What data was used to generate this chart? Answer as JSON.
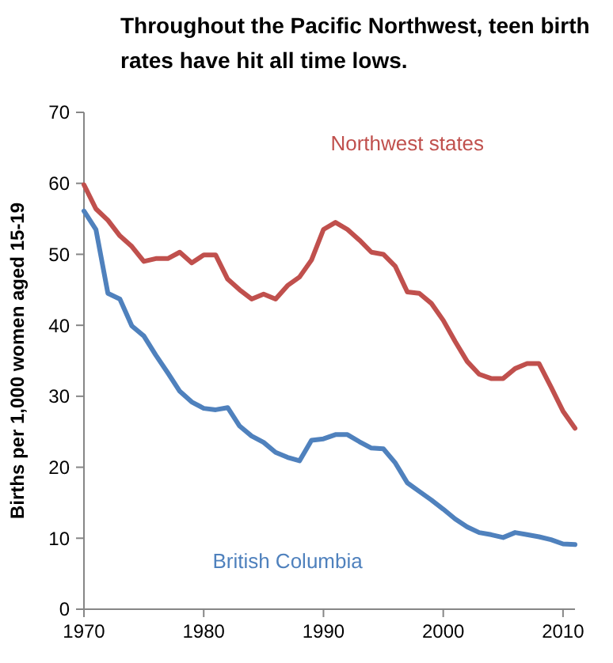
{
  "chart_data": {
    "type": "line",
    "title": "Throughout the Pacific Northwest, teen birth rates have hit all time lows.",
    "ylabel": "Births per 1,000 women aged 15-19",
    "x": [
      1970,
      1971,
      1972,
      1973,
      1974,
      1975,
      1976,
      1977,
      1978,
      1979,
      1980,
      1981,
      1982,
      1983,
      1984,
      1985,
      1986,
      1987,
      1988,
      1989,
      1990,
      1991,
      1992,
      1993,
      1994,
      1995,
      1996,
      1997,
      1998,
      1999,
      2000,
      2001,
      2002,
      2003,
      2004,
      2005,
      2006,
      2007,
      2008,
      2009,
      2010,
      2011
    ],
    "series": [
      {
        "name": "Northwest states",
        "color": "#c0504d",
        "values": [
          59.8,
          56.4,
          54.8,
          52.6,
          51.1,
          49.0,
          49.4,
          49.4,
          50.3,
          48.8,
          49.9,
          49.9,
          46.5,
          45.0,
          43.7,
          44.4,
          43.7,
          45.6,
          46.8,
          49.2,
          53.5,
          54.5,
          53.5,
          52.0,
          50.3,
          50.0,
          48.3,
          44.7,
          44.5,
          43.1,
          40.7,
          37.7,
          34.9,
          33.1,
          32.5,
          32.5,
          33.9,
          34.6,
          34.6,
          31.3,
          27.9,
          25.5
        ]
      },
      {
        "name": "British Columbia",
        "color": "#4f81bd",
        "values": [
          56.1,
          53.5,
          44.5,
          43.7,
          39.9,
          38.5,
          35.8,
          33.3,
          30.7,
          29.2,
          28.3,
          28.1,
          28.4,
          25.8,
          24.4,
          23.5,
          22.1,
          21.4,
          20.9,
          23.8,
          24.0,
          24.6,
          24.6,
          23.6,
          22.7,
          22.6,
          20.6,
          17.8,
          16.6,
          15.4,
          14.1,
          12.7,
          11.6,
          10.8,
          10.5,
          10.1,
          10.8,
          10.5,
          10.2,
          9.8,
          9.2,
          9.1
        ]
      }
    ],
    "xlim": [
      1970,
      2011
    ],
    "xticks": [
      1970,
      1980,
      1990,
      2000,
      2010
    ],
    "ylim": [
      0,
      70
    ],
    "yticks": [
      0,
      10,
      20,
      30,
      40,
      50,
      60,
      70
    ],
    "grid": false,
    "legend": false,
    "marker": "none",
    "line_style": "solid"
  }
}
